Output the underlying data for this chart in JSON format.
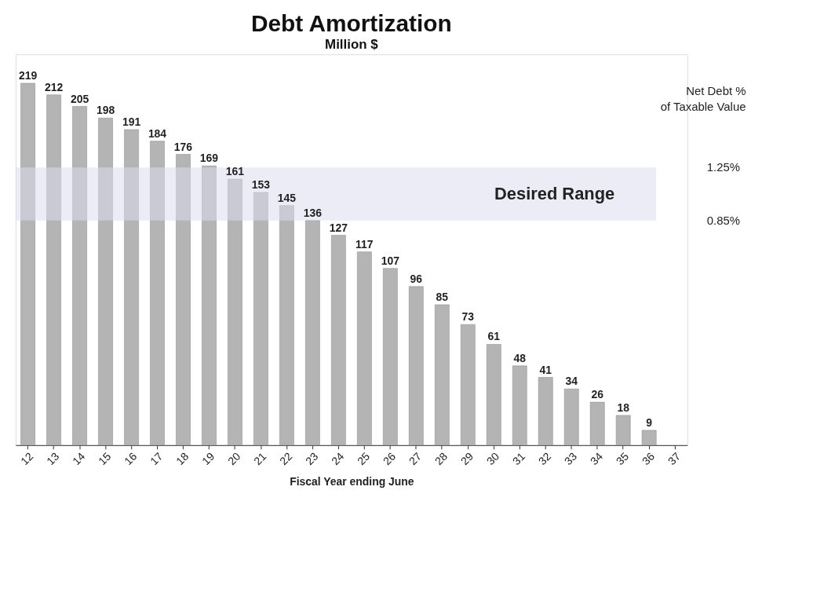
{
  "chart_data": {
    "type": "bar",
    "title": "Debt Amortization",
    "subtitle": "Million $",
    "xlabel": "Fiscal Year ending June",
    "categories": [
      "12",
      "13",
      "14",
      "15",
      "16",
      "17",
      "18",
      "19",
      "20",
      "21",
      "22",
      "23",
      "24",
      "25",
      "26",
      "27",
      "28",
      "29",
      "30",
      "31",
      "32",
      "33",
      "34",
      "35",
      "36",
      "37"
    ],
    "values": [
      219,
      212,
      205,
      198,
      191,
      184,
      176,
      169,
      161,
      153,
      145,
      136,
      127,
      117,
      107,
      96,
      85,
      73,
      61,
      48,
      41,
      34,
      26,
      18,
      9,
      null
    ],
    "color": "#b4b4b4",
    "data_labels": true,
    "bands": [
      {
        "axis": "y",
        "from": 136,
        "to": 168,
        "label": "Desired Range",
        "color": "#dcdcf0"
      }
    ],
    "annotations": [
      "Net Debt % of Taxable Value",
      "1.25%",
      "0.85%"
    ]
  }
}
